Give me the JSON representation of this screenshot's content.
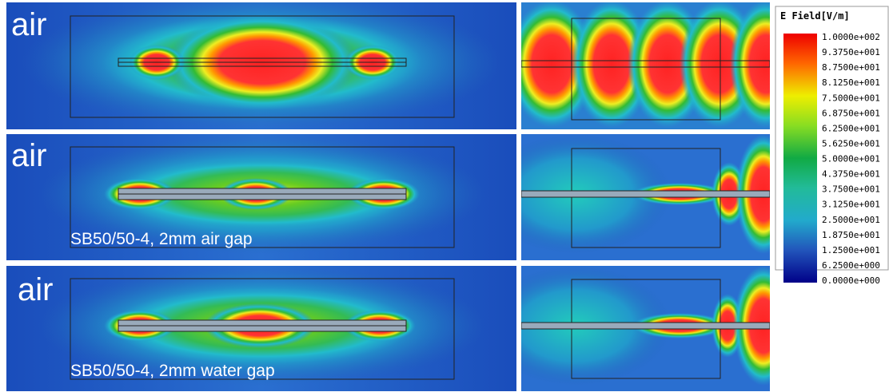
{
  "panels": [
    {
      "medium": "air"
    },
    {
      "medium": "air",
      "caption": "SB50/50-4, 2mm air gap"
    },
    {
      "medium": "air",
      "caption": "SB50/50-4, 2mm water gap"
    }
  ],
  "legend": {
    "title": "E Field[V/m]",
    "labels": [
      "1.0000e+002",
      "9.3750e+001",
      "8.7500e+001",
      "8.1250e+001",
      "7.5000e+001",
      "6.8750e+001",
      "6.2500e+001",
      "5.6250e+001",
      "5.0000e+001",
      "4.3750e+001",
      "3.7500e+001",
      "3.1250e+001",
      "2.5000e+001",
      "1.8750e+001",
      "1.2500e+001",
      "6.2500e+000",
      "0.0000e+000"
    ]
  }
}
